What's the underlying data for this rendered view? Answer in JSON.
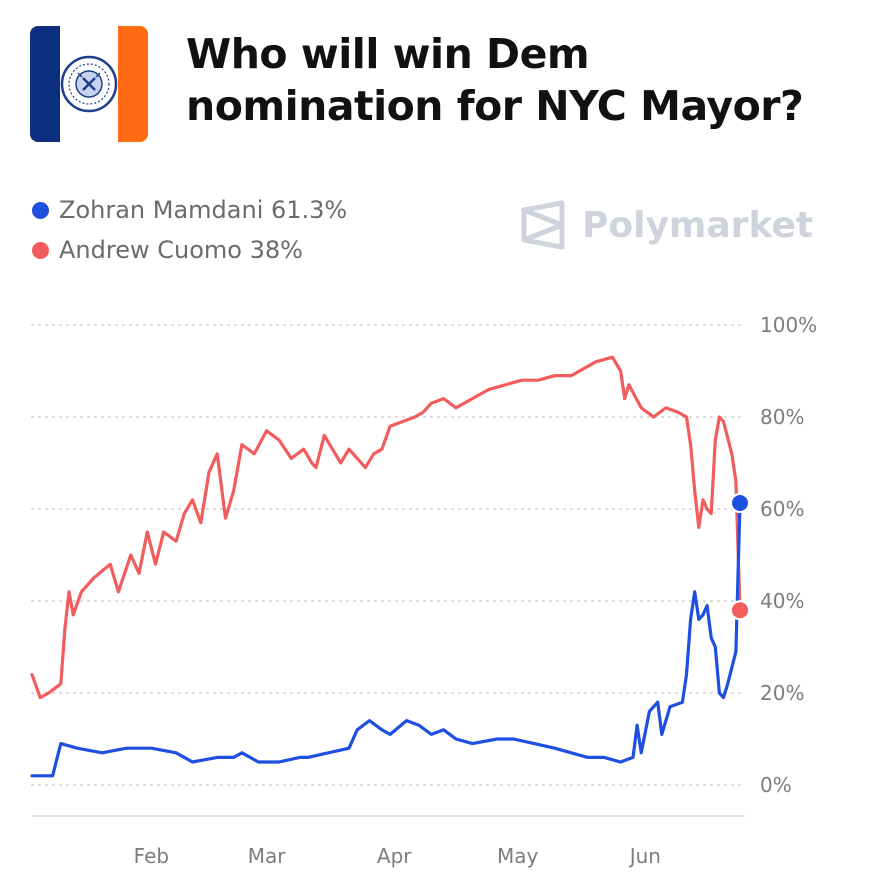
{
  "header": {
    "title_line1": "Who will win Dem",
    "title_line2": "nomination for NYC Mayor?"
  },
  "watermark": {
    "text": "Polymarket"
  },
  "legend": [
    {
      "label": "Zohran Mamdani 61.3%",
      "color": "#1f4fe0"
    },
    {
      "label": "Andrew Cuomo 38%",
      "color": "#f25c5c"
    }
  ],
  "chart_data": {
    "type": "line",
    "ylim": [
      0,
      100
    ],
    "y_ticks": [
      "100%",
      "80%",
      "60%",
      "40%",
      "20%",
      "0%"
    ],
    "y_tick_values": [
      100,
      80,
      60,
      40,
      20,
      0
    ],
    "x_ticks": [
      {
        "label": "Feb",
        "day": 32
      },
      {
        "label": "Mar",
        "day": 60
      },
      {
        "label": "Apr",
        "day": 91
      },
      {
        "label": "May",
        "day": 121
      },
      {
        "label": "Jun",
        "day": 152
      }
    ],
    "x_range": [
      3,
      175
    ],
    "grid": true,
    "legend_position": "top-left",
    "series": [
      {
        "name": "Zohran Mamdani",
        "color": "#1f4fe0",
        "points": [
          [
            3,
            2
          ],
          [
            8,
            2
          ],
          [
            10,
            9
          ],
          [
            14,
            8
          ],
          [
            20,
            7
          ],
          [
            26,
            8
          ],
          [
            32,
            8
          ],
          [
            38,
            7
          ],
          [
            42,
            5
          ],
          [
            48,
            6
          ],
          [
            52,
            6
          ],
          [
            54,
            7
          ],
          [
            58,
            5
          ],
          [
            63,
            5
          ],
          [
            68,
            6
          ],
          [
            70,
            6
          ],
          [
            75,
            7
          ],
          [
            80,
            8
          ],
          [
            82,
            12
          ],
          [
            85,
            14
          ],
          [
            88,
            12
          ],
          [
            90,
            11
          ],
          [
            94,
            14
          ],
          [
            97,
            13
          ],
          [
            100,
            11
          ],
          [
            103,
            12
          ],
          [
            106,
            10
          ],
          [
            110,
            9
          ],
          [
            116,
            10
          ],
          [
            120,
            10
          ],
          [
            125,
            9
          ],
          [
            130,
            8
          ],
          [
            134,
            7
          ],
          [
            138,
            6
          ],
          [
            142,
            6
          ],
          [
            146,
            5
          ],
          [
            149,
            6
          ],
          [
            150,
            13
          ],
          [
            151,
            7
          ],
          [
            153,
            16
          ],
          [
            155,
            18
          ],
          [
            156,
            11
          ],
          [
            158,
            17
          ],
          [
            161,
            18
          ],
          [
            162,
            24
          ],
          [
            163,
            36
          ],
          [
            164,
            42
          ],
          [
            165,
            36
          ],
          [
            166,
            37
          ],
          [
            167,
            39
          ],
          [
            168,
            32
          ],
          [
            169,
            30
          ],
          [
            170,
            20
          ],
          [
            171,
            19
          ],
          [
            172,
            22
          ],
          [
            174,
            29
          ],
          [
            175,
            61.3
          ]
        ]
      },
      {
        "name": "Andrew Cuomo",
        "color": "#f25c5c",
        "points": [
          [
            3,
            24
          ],
          [
            5,
            19
          ],
          [
            7,
            20
          ],
          [
            10,
            22
          ],
          [
            11,
            34
          ],
          [
            12,
            42
          ],
          [
            13,
            37
          ],
          [
            15,
            42
          ],
          [
            18,
            45
          ],
          [
            22,
            48
          ],
          [
            24,
            42
          ],
          [
            27,
            50
          ],
          [
            29,
            46
          ],
          [
            31,
            55
          ],
          [
            33,
            48
          ],
          [
            35,
            55
          ],
          [
            38,
            53
          ],
          [
            40,
            59
          ],
          [
            42,
            62
          ],
          [
            44,
            57
          ],
          [
            46,
            68
          ],
          [
            48,
            72
          ],
          [
            50,
            58
          ],
          [
            52,
            64
          ],
          [
            54,
            74
          ],
          [
            57,
            72
          ],
          [
            60,
            77
          ],
          [
            63,
            75
          ],
          [
            66,
            71
          ],
          [
            69,
            73
          ],
          [
            71,
            70
          ],
          [
            72,
            69
          ],
          [
            74,
            76
          ],
          [
            76,
            73
          ],
          [
            78,
            70
          ],
          [
            80,
            73
          ],
          [
            84,
            69
          ],
          [
            86,
            72
          ],
          [
            88,
            73
          ],
          [
            90,
            78
          ],
          [
            93,
            79
          ],
          [
            96,
            80
          ],
          [
            98,
            81
          ],
          [
            100,
            83
          ],
          [
            103,
            84
          ],
          [
            106,
            82
          ],
          [
            110,
            84
          ],
          [
            114,
            86
          ],
          [
            118,
            87
          ],
          [
            122,
            88
          ],
          [
            126,
            88
          ],
          [
            130,
            89
          ],
          [
            134,
            89
          ],
          [
            136,
            90
          ],
          [
            140,
            92
          ],
          [
            144,
            93
          ],
          [
            146,
            90
          ],
          [
            147,
            84
          ],
          [
            148,
            87
          ],
          [
            151,
            82
          ],
          [
            154,
            80
          ],
          [
            157,
            82
          ],
          [
            160,
            81
          ],
          [
            162,
            80
          ],
          [
            163,
            74
          ],
          [
            164,
            64
          ],
          [
            165,
            56
          ],
          [
            166,
            62
          ],
          [
            167,
            60
          ],
          [
            168,
            59
          ],
          [
            169,
            75
          ],
          [
            170,
            80
          ],
          [
            171,
            79
          ],
          [
            173,
            72
          ],
          [
            174,
            66
          ],
          [
            175,
            38
          ]
        ]
      }
    ]
  }
}
